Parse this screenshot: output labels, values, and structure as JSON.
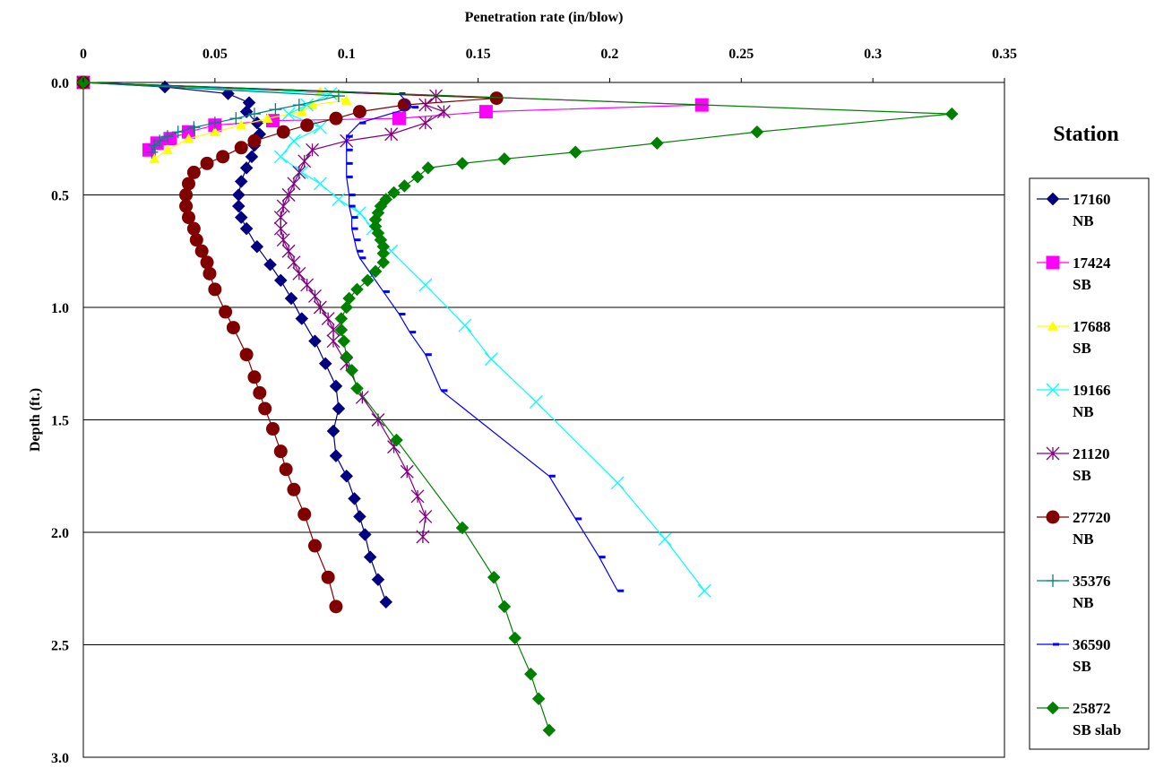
{
  "chart_data": {
    "type": "line",
    "title": "",
    "xlabel": "Penetration rate (in/blow)",
    "ylabel": "Depth (ft.)",
    "x_axis_position": "top",
    "y_axis_inverted": true,
    "xlim": [
      0,
      0.35
    ],
    "ylim": [
      0,
      3.0
    ],
    "xticks": [
      "0",
      "0.05",
      "0.1",
      "0.15",
      "0.2",
      "0.25",
      "0.3",
      "0.35"
    ],
    "yticks": [
      "0.0",
      "0.5",
      "1.0",
      "1.5",
      "2.0",
      "2.5",
      "3.0"
    ],
    "grid": "horizontal",
    "legend_title": "Station",
    "legend_position": "right",
    "series": [
      {
        "name": "17160 NB",
        "name_lines": [
          "17160",
          "NB"
        ],
        "color": "#000080",
        "marker": "diamond",
        "points": [
          [
            0,
            0
          ],
          [
            0.031,
            0.02
          ],
          [
            0.055,
            0.05
          ],
          [
            0.063,
            0.09
          ],
          [
            0.062,
            0.13
          ],
          [
            0.066,
            0.18
          ],
          [
            0.067,
            0.23
          ],
          [
            0.065,
            0.28
          ],
          [
            0.064,
            0.33
          ],
          [
            0.062,
            0.38
          ],
          [
            0.06,
            0.44
          ],
          [
            0.059,
            0.5
          ],
          [
            0.059,
            0.55
          ],
          [
            0.06,
            0.6
          ],
          [
            0.062,
            0.65
          ],
          [
            0.066,
            0.73
          ],
          [
            0.071,
            0.81
          ],
          [
            0.075,
            0.88
          ],
          [
            0.079,
            0.96
          ],
          [
            0.083,
            1.05
          ],
          [
            0.088,
            1.15
          ],
          [
            0.092,
            1.25
          ],
          [
            0.096,
            1.35
          ],
          [
            0.097,
            1.45
          ],
          [
            0.095,
            1.55
          ],
          [
            0.096,
            1.66
          ],
          [
            0.1,
            1.75
          ],
          [
            0.103,
            1.85
          ],
          [
            0.105,
            1.93
          ],
          [
            0.107,
            2.01
          ],
          [
            0.109,
            2.11
          ],
          [
            0.112,
            2.21
          ],
          [
            0.115,
            2.31
          ]
        ]
      },
      {
        "name": "17424 SB",
        "name_lines": [
          "17424",
          "SB"
        ],
        "color": "#FF00FF",
        "marker": "square",
        "points": [
          [
            0,
            0
          ],
          [
            0.235,
            0.1
          ],
          [
            0.153,
            0.13
          ],
          [
            0.12,
            0.16
          ],
          [
            0.072,
            0.17
          ],
          [
            0.05,
            0.19
          ],
          [
            0.04,
            0.22
          ],
          [
            0.033,
            0.25
          ],
          [
            0.028,
            0.27
          ],
          [
            0.025,
            0.3
          ]
        ]
      },
      {
        "name": "17688 SB",
        "name_lines": [
          "17688",
          "SB"
        ],
        "color": "#FFFF00",
        "marker": "triangle",
        "points": [
          [
            0,
            0
          ],
          [
            0.09,
            0.04
          ],
          [
            0.1,
            0.08
          ],
          [
            0.087,
            0.1
          ],
          [
            0.083,
            0.13
          ],
          [
            0.07,
            0.16
          ],
          [
            0.06,
            0.19
          ],
          [
            0.05,
            0.22
          ],
          [
            0.04,
            0.25
          ],
          [
            0.032,
            0.3
          ],
          [
            0.027,
            0.34
          ]
        ]
      },
      {
        "name": "19166 NB",
        "name_lines": [
          "19166",
          "NB"
        ],
        "color": "#00FFFF",
        "marker": "x",
        "points": [
          [
            0,
            0
          ],
          [
            0.094,
            0.05
          ],
          [
            0.085,
            0.1
          ],
          [
            0.078,
            0.14
          ],
          [
            0.09,
            0.2
          ],
          [
            0.08,
            0.26
          ],
          [
            0.075,
            0.33
          ],
          [
            0.083,
            0.4
          ],
          [
            0.09,
            0.45
          ],
          [
            0.097,
            0.52
          ],
          [
            0.105,
            0.58
          ],
          [
            0.11,
            0.65
          ],
          [
            0.117,
            0.75
          ],
          [
            0.13,
            0.9
          ],
          [
            0.145,
            1.08
          ],
          [
            0.155,
            1.23
          ],
          [
            0.172,
            1.42
          ],
          [
            0.203,
            1.78
          ],
          [
            0.221,
            2.03
          ],
          [
            0.236,
            2.26
          ]
        ]
      },
      {
        "name": "21120 SB",
        "name_lines": [
          "21120",
          "SB"
        ],
        "color": "#800080",
        "marker": "star",
        "points": [
          [
            0,
            0
          ],
          [
            0.134,
            0.06
          ],
          [
            0.13,
            0.1
          ],
          [
            0.137,
            0.13
          ],
          [
            0.13,
            0.18
          ],
          [
            0.117,
            0.23
          ],
          [
            0.1,
            0.26
          ],
          [
            0.087,
            0.3
          ],
          [
            0.084,
            0.35
          ],
          [
            0.082,
            0.4
          ],
          [
            0.08,
            0.45
          ],
          [
            0.078,
            0.5
          ],
          [
            0.076,
            0.55
          ],
          [
            0.075,
            0.6
          ],
          [
            0.075,
            0.65
          ],
          [
            0.076,
            0.7
          ],
          [
            0.078,
            0.75
          ],
          [
            0.08,
            0.8
          ],
          [
            0.082,
            0.85
          ],
          [
            0.085,
            0.9
          ],
          [
            0.088,
            0.95
          ],
          [
            0.09,
            1.0
          ],
          [
            0.093,
            1.05
          ],
          [
            0.095,
            1.1
          ],
          [
            0.095,
            1.15
          ],
          [
            0.1,
            1.25
          ],
          [
            0.106,
            1.4
          ],
          [
            0.112,
            1.5
          ],
          [
            0.118,
            1.62
          ],
          [
            0.123,
            1.73
          ],
          [
            0.127,
            1.84
          ],
          [
            0.13,
            1.93
          ],
          [
            0.129,
            2.02
          ]
        ]
      },
      {
        "name": "27720 NB",
        "name_lines": [
          "27720",
          "NB"
        ],
        "color": "#800000",
        "marker": "circle",
        "points": [
          [
            0,
            0
          ],
          [
            0.157,
            0.07
          ],
          [
            0.122,
            0.1
          ],
          [
            0.105,
            0.13
          ],
          [
            0.096,
            0.16
          ],
          [
            0.085,
            0.19
          ],
          [
            0.076,
            0.22
          ],
          [
            0.065,
            0.26
          ],
          [
            0.06,
            0.29
          ],
          [
            0.053,
            0.33
          ],
          [
            0.047,
            0.36
          ],
          [
            0.042,
            0.4
          ],
          [
            0.04,
            0.45
          ],
          [
            0.039,
            0.5
          ],
          [
            0.039,
            0.55
          ],
          [
            0.04,
            0.6
          ],
          [
            0.042,
            0.65
          ],
          [
            0.043,
            0.7
          ],
          [
            0.045,
            0.75
          ],
          [
            0.047,
            0.8
          ],
          [
            0.048,
            0.85
          ],
          [
            0.05,
            0.92
          ],
          [
            0.054,
            1.02
          ],
          [
            0.057,
            1.09
          ],
          [
            0.062,
            1.21
          ],
          [
            0.065,
            1.31
          ],
          [
            0.067,
            1.38
          ],
          [
            0.069,
            1.45
          ],
          [
            0.072,
            1.54
          ],
          [
            0.075,
            1.64
          ],
          [
            0.077,
            1.72
          ],
          [
            0.08,
            1.81
          ],
          [
            0.084,
            1.92
          ],
          [
            0.088,
            2.06
          ],
          [
            0.093,
            2.2
          ],
          [
            0.096,
            2.33
          ]
        ]
      },
      {
        "name": "35376 NB",
        "name_lines": [
          "35376",
          "NB"
        ],
        "color": "#008080",
        "marker": "plus",
        "points": [
          [
            0,
            0
          ],
          [
            0.097,
            0.06
          ],
          [
            0.082,
            0.1
          ],
          [
            0.073,
            0.12
          ],
          [
            0.065,
            0.14
          ],
          [
            0.058,
            0.16
          ],
          [
            0.05,
            0.18
          ],
          [
            0.042,
            0.2
          ],
          [
            0.036,
            0.22
          ],
          [
            0.032,
            0.24
          ],
          [
            0.029,
            0.26
          ],
          [
            0.027,
            0.28
          ],
          [
            0.026,
            0.31
          ]
        ]
      },
      {
        "name": "36590 SB",
        "name_lines": [
          "36590",
          "SB"
        ],
        "color": "#0000FF",
        "marker": "dash",
        "points": [
          [
            0,
            0
          ],
          [
            0.12,
            0.05
          ],
          [
            0.125,
            0.11
          ],
          [
            0.105,
            0.18
          ],
          [
            0.1,
            0.24
          ],
          [
            0.1,
            0.3
          ],
          [
            0.1,
            0.36
          ],
          [
            0.1,
            0.42
          ],
          [
            0.101,
            0.5
          ],
          [
            0.101,
            0.55
          ],
          [
            0.102,
            0.6
          ],
          [
            0.102,
            0.65
          ],
          [
            0.103,
            0.7
          ],
          [
            0.104,
            0.75
          ],
          [
            0.105,
            0.78
          ],
          [
            0.114,
            0.93
          ],
          [
            0.12,
            1.03
          ],
          [
            0.124,
            1.11
          ],
          [
            0.13,
            1.21
          ],
          [
            0.136,
            1.37
          ],
          [
            0.177,
            1.75
          ],
          [
            0.187,
            1.94
          ],
          [
            0.196,
            2.11
          ],
          [
            0.203,
            2.26
          ]
        ]
      },
      {
        "name": "25872 SB slab",
        "name_lines": [
          "25872",
          "SB slab"
        ],
        "color": "#008000",
        "marker": "diamond",
        "points": [
          [
            0,
            0
          ],
          [
            0.33,
            0.14
          ],
          [
            0.256,
            0.22
          ],
          [
            0.218,
            0.27
          ],
          [
            0.187,
            0.31
          ],
          [
            0.16,
            0.34
          ],
          [
            0.144,
            0.36
          ],
          [
            0.131,
            0.38
          ],
          [
            0.127,
            0.42
          ],
          [
            0.122,
            0.46
          ],
          [
            0.118,
            0.49
          ],
          [
            0.115,
            0.52
          ],
          [
            0.113,
            0.55
          ],
          [
            0.112,
            0.58
          ],
          [
            0.111,
            0.61
          ],
          [
            0.111,
            0.64
          ],
          [
            0.112,
            0.67
          ],
          [
            0.113,
            0.7
          ],
          [
            0.114,
            0.73
          ],
          [
            0.114,
            0.76
          ],
          [
            0.114,
            0.8
          ],
          [
            0.111,
            0.84
          ],
          [
            0.108,
            0.88
          ],
          [
            0.104,
            0.92
          ],
          [
            0.101,
            0.96
          ],
          [
            0.1,
            1.0
          ],
          [
            0.098,
            1.05
          ],
          [
            0.098,
            1.1
          ],
          [
            0.099,
            1.15
          ],
          [
            0.1,
            1.22
          ],
          [
            0.102,
            1.28
          ],
          [
            0.104,
            1.36
          ],
          [
            0.119,
            1.59
          ],
          [
            0.144,
            1.98
          ],
          [
            0.156,
            2.2
          ],
          [
            0.16,
            2.33
          ],
          [
            0.164,
            2.47
          ],
          [
            0.17,
            2.63
          ],
          [
            0.173,
            2.74
          ],
          [
            0.177,
            2.88
          ]
        ]
      }
    ]
  }
}
